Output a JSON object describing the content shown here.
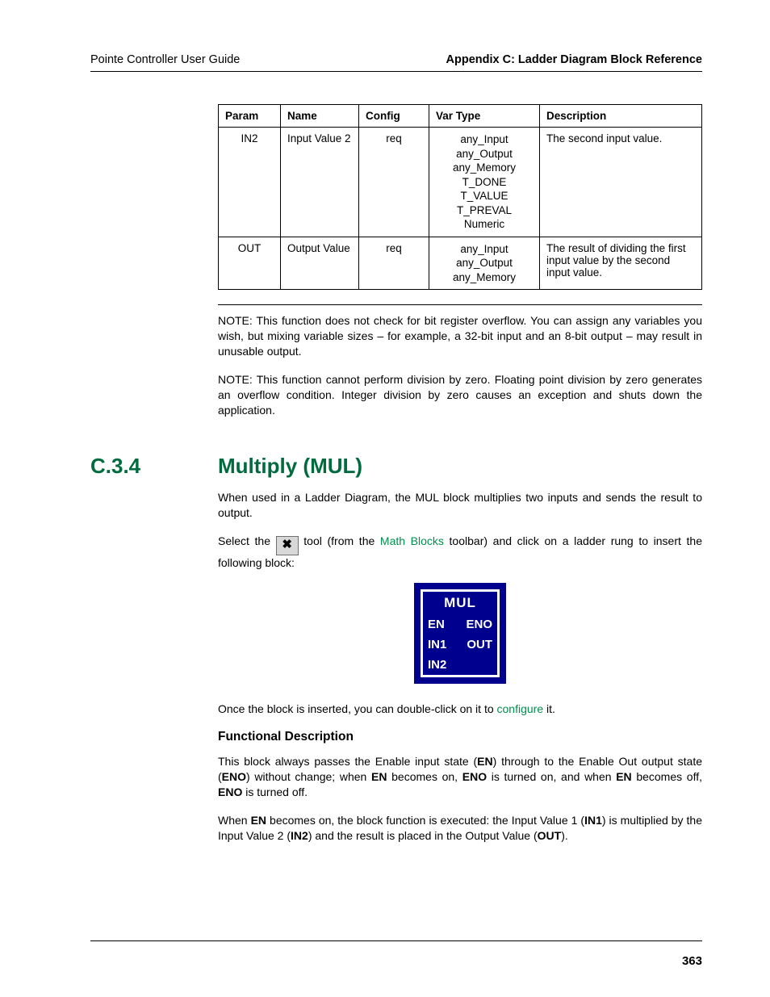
{
  "header": {
    "left": "Pointe Controller User Guide",
    "right": "Appendix C: Ladder Diagram Block Reference"
  },
  "table": {
    "headers": [
      "Param",
      "Name",
      "Config",
      "Var Type",
      "Description"
    ],
    "rows": [
      {
        "param": "IN2",
        "name": "Input Value 2",
        "config": "req",
        "vtype": "any_Input\nany_Output\nany_Memory\nT_DONE\nT_VALUE\nT_PREVAL\nNumeric",
        "desc": "The second input value."
      },
      {
        "param": "OUT",
        "name": "Output Value",
        "config": "req",
        "vtype": "any_Input\nany_Output\nany_Memory",
        "desc": "The result of dividing the first input value by the second input value."
      }
    ]
  },
  "notes": {
    "n1": "NOTE: This function does not check for bit register overflow. You can assign any variables you wish, but mixing variable sizes – for example, a 32-bit input and an 8-bit output – may result in unusable output.",
    "n2": "NOTE: This function cannot perform division by zero. Floating point division by zero generates an overflow condition. Integer division by zero causes an exception and shuts down the application."
  },
  "section": {
    "number": "C.3.4",
    "title": "Multiply (MUL)",
    "intro": "When used in a Ladder Diagram, the MUL block multiplies two inputs and sends the result to output.",
    "select_pre": "Select the ",
    "select_mid1": " tool (from the ",
    "mathblocks": "Math Blocks",
    "select_mid2": " toolbar) and click on a ladder rung to insert the following block:",
    "icon_glyph": "✖",
    "block": {
      "title": "MUL",
      "left": [
        "EN",
        "IN1",
        "IN2"
      ],
      "right": [
        "ENO",
        "OUT",
        ""
      ]
    },
    "once_pre": "Once the block is inserted, you can double-click on it to ",
    "configure": "configure",
    "once_post": " it.",
    "func_heading": "Functional Description",
    "func_p1_a": "This block always passes the Enable input state (",
    "func_p1_en": "EN",
    "func_p1_b": ") through to the Enable Out output state (",
    "func_p1_eno": "ENO",
    "func_p1_c": ") without change; when ",
    "func_p1_en2": "EN",
    "func_p1_d": " becomes on, ",
    "func_p1_eno2": "ENO",
    "func_p1_e": " is turned on, and when ",
    "func_p1_en3": "EN",
    "func_p1_f": " becomes off, ",
    "func_p1_eno3": "ENO",
    "func_p1_g": " is turned off.",
    "func_p2_a": "When ",
    "func_p2_en": "EN",
    "func_p2_b": " becomes on, the block function is executed: the Input Value 1 (",
    "func_p2_in1": "IN1",
    "func_p2_c": ") is multiplied by the Input Value 2 (",
    "func_p2_in2": "IN2",
    "func_p2_d": ") and the result is placed in the Output Value (",
    "func_p2_out": "OUT",
    "func_p2_e": ")."
  },
  "page_number": "363"
}
